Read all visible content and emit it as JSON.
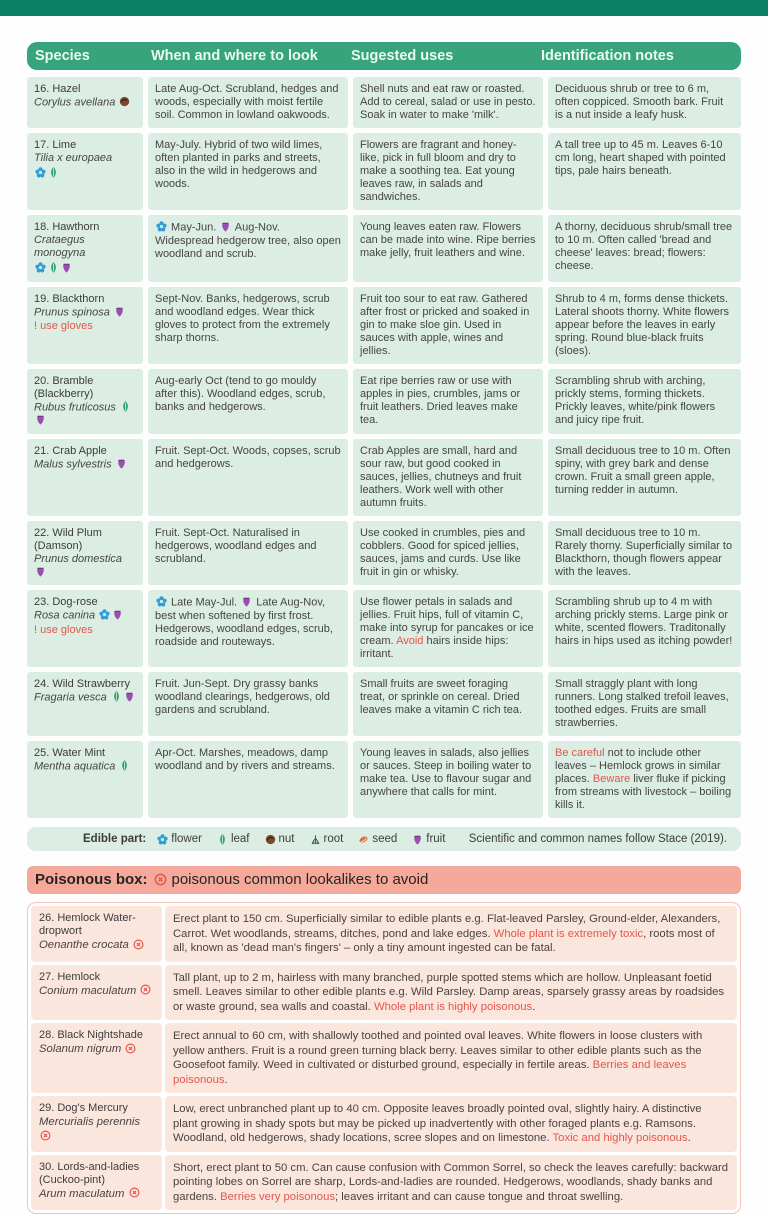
{
  "palette": {
    "top_band": "#0b8065",
    "header_green": "#38a47d",
    "cell_green": "#dcede3",
    "poison_bar": "#f4a99b",
    "poison_cell": "#fbe6de",
    "warning_red": "#e2574b"
  },
  "main_table": {
    "headers": [
      "Species",
      "When and where to look",
      "Sugested uses",
      "Identification notes"
    ],
    "rows": [
      {
        "name": "16. Hazel",
        "latin": "Corylus avellana",
        "latin_icons": [
          "nut"
        ],
        "icons_below": [],
        "warning": "",
        "when": [
          {
            "t": "Late Aug-Oct. Scrubland, hedges and woods, especially with moist fertile soil. Common in lowland oakwoods."
          }
        ],
        "uses": [
          {
            "t": "Shell nuts and eat raw or roasted. Add to cereal, salad or use in pesto. Soak in water to make 'milk'."
          }
        ],
        "id": [
          {
            "t": "Deciduous shrub or tree to 6 m, often coppiced. Smooth bark. Fruit is a nut inside a leafy husk."
          }
        ]
      },
      {
        "name": "17. Lime",
        "latin": "Tilia x europaea",
        "latin_icons": [],
        "icons_below": [
          "flower",
          "leaf"
        ],
        "warning": "",
        "when": [
          {
            "t": "May-July. Hybrid of two wild limes, often planted in parks and streets, also in the wild in hedgerows and woods."
          }
        ],
        "uses": [
          {
            "t": "Flowers are fragrant and honey-like, pick in full bloom and dry to make a soothing tea. Eat young leaves raw, in salads and sandwiches."
          }
        ],
        "id": [
          {
            "t": "A tall tree up to 45 m. Leaves 6-10 cm long, heart shaped with pointed tips, pale hairs beneath."
          }
        ]
      },
      {
        "name": "18. Hawthorn",
        "latin": "Crataegus monogyna",
        "latin_icons": [],
        "icons_below": [
          "flower",
          "leaf",
          "fruit"
        ],
        "warning": "",
        "when": [
          {
            "icon": "flower"
          },
          {
            "t": " May-Jun. "
          },
          {
            "icon": "fruit"
          },
          {
            "t": " Aug-Nov. Widespread hedgerow tree, also open woodland and scrub."
          }
        ],
        "uses": [
          {
            "t": "Young leaves eaten raw. Flowers can be made into wine. Ripe berries make jelly, fruit leathers and wine."
          }
        ],
        "id": [
          {
            "t": "A thorny, deciduous shrub/small tree to 10 m. Often called 'bread and cheese' leaves: bread; flowers: cheese."
          }
        ]
      },
      {
        "name": "19. Blackthorn",
        "latin": "Prunus spinosa",
        "latin_icons": [
          "fruit"
        ],
        "icons_below": [],
        "warning": "! use gloves",
        "when": [
          {
            "t": "Sept-Nov. Banks, hedgerows, scrub and woodland edges. Wear thick gloves to protect from the extremely sharp thorns."
          }
        ],
        "uses": [
          {
            "t": "Fruit too sour to eat raw. Gathered after frost or pricked and soaked in gin to make sloe gin. Used in sauces with apple, wines and jellies."
          }
        ],
        "id": [
          {
            "t": "Shrub to 4 m, forms dense thickets. Lateral shoots thorny. White flowers appear before the leaves in early spring. Round blue-black fruits (sloes)."
          }
        ]
      },
      {
        "name": "20. Bramble (Blackberry)",
        "latin": "Rubus fruticosus",
        "latin_icons": [
          "leaf",
          "fruit"
        ],
        "icons_below": [],
        "warning": "",
        "when": [
          {
            "t": "Aug-early Oct (tend to go mouldy after this). Woodland edges, scrub, banks and hedgerows."
          }
        ],
        "uses": [
          {
            "t": "Eat ripe berries raw or use with apples in pies, crumbles, jams or fruit leathers. Dried leaves make tea."
          }
        ],
        "id": [
          {
            "t": "Scrambling shrub with arching, prickly stems, forming thickets. Prickly leaves, white/pink flowers and juicy ripe fruit."
          }
        ]
      },
      {
        "name": "21. Crab Apple",
        "latin": "Malus sylvestris",
        "latin_icons": [
          "fruit"
        ],
        "icons_below": [],
        "warning": "",
        "when": [
          {
            "t": "Fruit. Sept-Oct. Woods, copses, scrub and hedgerows."
          }
        ],
        "uses": [
          {
            "t": "Crab Apples are small, hard and sour raw, but good cooked in sauces, jellies, chutneys and fruit leathers. Work well with other autumn fruits."
          }
        ],
        "id": [
          {
            "t": "Small deciduous tree to 10 m. Often spiny, with grey bark and dense crown. Fruit a small green apple, turning redder in autumn."
          }
        ]
      },
      {
        "name": "22. Wild Plum (Damson)",
        "latin": "Prunus domestica",
        "latin_icons": [
          "fruit"
        ],
        "icons_below": [],
        "warning": "",
        "when": [
          {
            "t": "Fruit. Sept-Oct. Naturalised in hedgerows, woodland edges and scrubland."
          }
        ],
        "uses": [
          {
            "t": "Use cooked in crumbles, pies and cobblers. Good for spiced jellies, sauces, jams and curds. Use like fruit in gin or whisky."
          }
        ],
        "id": [
          {
            "t": "Small deciduous tree to 10 m. Rarely thorny. Superficially similar to Blackthorn, though flowers appear with the leaves."
          }
        ]
      },
      {
        "name": "23. Dog-rose",
        "latin": "Rosa canina",
        "latin_icons": [
          "flower",
          "fruit"
        ],
        "icons_below": [],
        "warning": "! use gloves",
        "when": [
          {
            "icon": "flower"
          },
          {
            "t": " Late May-Jul. "
          },
          {
            "icon": "fruit"
          },
          {
            "t": " Late Aug-Nov, best when softened by first frost. Hedgerows, woodland edges, scrub, roadside and routeways."
          }
        ],
        "uses": [
          {
            "t": "Use flower petals in salads and jellies. Fruit hips, full of vitamin C, make into syrup for pancakes or ice cream. "
          },
          {
            "t": "Avoid",
            "red": true
          },
          {
            "t": " hairs inside hips: irritant."
          }
        ],
        "id": [
          {
            "t": "Scrambling shrub up to 4 m with arching prickly stems. Large pink or white, scented flowers. Traditonally hairs in hips used as itching powder!"
          }
        ]
      },
      {
        "name": "24. Wild Strawberry",
        "latin": "Fragaria vesca",
        "latin_icons": [
          "leaf",
          "fruit"
        ],
        "icons_below": [],
        "warning": "",
        "when": [
          {
            "t": "Fruit. Jun-Sept. Dry grassy banks woodland clearings, hedgerows, old gardens and scrubland."
          }
        ],
        "uses": [
          {
            "t": "Small fruits are sweet foraging treat, or sprinkle on cereal. Dried leaves make a vitamin C rich tea."
          }
        ],
        "id": [
          {
            "t": "Small straggly plant with long runners. Long stalked trefoil leaves, toothed edges. Fruits are small strawberries."
          }
        ]
      },
      {
        "name": "25. Water Mint",
        "latin": "Mentha aquatica",
        "latin_icons": [
          "leaf"
        ],
        "icons_below": [],
        "warning": "",
        "when": [
          {
            "t": "Apr-Oct. Marshes, meadows, damp woodland and by rivers and streams."
          }
        ],
        "uses": [
          {
            "t": "Young leaves in salads, also jellies or sauces. Steep in boiling water to make tea. Use to flavour sugar and anywhere that calls for mint."
          }
        ],
        "id": [
          {
            "t": "Be careful",
            "red": true
          },
          {
            "t": " not to include other leaves – Hemlock grows in similar places. "
          },
          {
            "t": "Beware",
            "red": true
          },
          {
            "t": " liver fluke if picking from streams with livestock – boiling kills it."
          }
        ]
      }
    ]
  },
  "legend": {
    "label": "Edible part:",
    "items": [
      {
        "icon": "flower",
        "label": "flower"
      },
      {
        "icon": "leaf",
        "label": "leaf"
      },
      {
        "icon": "nut",
        "label": "nut"
      },
      {
        "icon": "root",
        "label": "root"
      },
      {
        "icon": "seed",
        "label": "seed"
      },
      {
        "icon": "fruit",
        "label": "fruit"
      }
    ],
    "note": "Scientific and common names follow Stace (2019)."
  },
  "poison_box": {
    "header": {
      "title": "Poisonous box:",
      "icon": "poison",
      "subtitle": "poisonous common lookalikes to avoid"
    },
    "rows": [
      {
        "name": "26. Hemlock Water-dropwort",
        "latin": "Oenanthe crocata",
        "desc": [
          {
            "t": "Erect plant to 150 cm. Superficially similar to edible plants e.g. Flat-leaved Parsley, Ground-elder, Alexanders, Carrot. Wet woodlands, streams, ditches, pond and lake edges. "
          },
          {
            "t": "Whole plant is extremely toxic",
            "red": true
          },
          {
            "t": ", roots most of all, known as 'dead man's fingers' – only a tiny amount ingested can be fatal."
          }
        ]
      },
      {
        "name": "27. Hemlock",
        "latin": "Conium maculatum",
        "desc": [
          {
            "t": "Tall plant, up to 2 m, hairless with many branched, purple spotted stems which are hollow. Unpleasant foetid smell. Leaves similar to other edible plants e.g. Wild Parsley. Damp areas, sparsely grassy areas by roadsides or waste ground, sea walls and coastal. "
          },
          {
            "t": "Whole plant is highly poisonous",
            "red": true
          },
          {
            "t": "."
          }
        ]
      },
      {
        "name": "28. Black Nightshade",
        "latin": "Solanum nigrum",
        "desc": [
          {
            "t": "Erect annual to 60 cm, with shallowly toothed and pointed oval leaves. White flowers in loose clusters with yellow anthers. Fruit is a round green turning black berry. Leaves similar to other edible plants such as the Goosefoot family. Weed in cultivated or disturbed ground, especially in fertile areas. "
          },
          {
            "t": "Berries and leaves poisonous",
            "red": true
          },
          {
            "t": "."
          }
        ]
      },
      {
        "name": "29. Dog's Mercury",
        "latin": "Mercurialis perennis",
        "desc": [
          {
            "t": "Low, erect unbranched plant up to 40 cm. Opposite leaves broadly pointed oval, slightly hairy. A distinctive plant growing in shady spots but may be picked up inadvertently with other foraged plants e.g. Ramsons. Woodland, old hedgerows, shady locations, scree slopes and on limestone. "
          },
          {
            "t": "Toxic and highly poisonous",
            "red": true
          },
          {
            "t": "."
          }
        ]
      },
      {
        "name": "30. Lords-and-ladies (Cuckoo-pint)",
        "latin": "Arum maculatum",
        "desc": [
          {
            "t": "Short, erect plant to 50 cm. Can cause confusion with Common Sorrel, so check the leaves carefully: backward pointing lobes on Sorrel are sharp, Lords-and-ladies are rounded. Hedgerows, woodlands, shady banks and gardens. "
          },
          {
            "t": "Berries very poisonous",
            "red": true
          },
          {
            "t": "; leaves irritant and can cause tongue and throat swelling."
          }
        ]
      }
    ]
  }
}
